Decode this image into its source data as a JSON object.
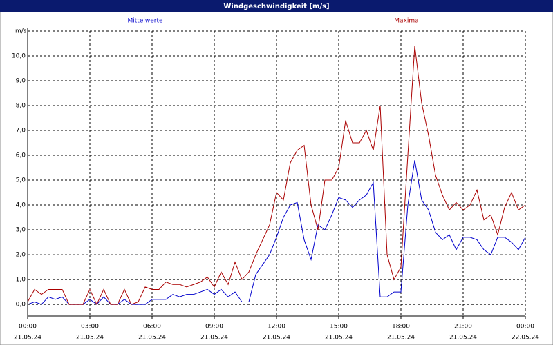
{
  "chart_data": {
    "type": "line",
    "title": "Windgeschwindigkeit [m/s]",
    "y_unit": "m/s",
    "x": [
      0,
      20,
      40,
      60,
      80,
      100,
      120,
      140,
      160,
      180,
      200,
      220,
      240,
      260,
      280,
      300,
      320,
      340,
      360,
      380,
      400,
      420,
      440,
      460,
      480,
      500,
      520,
      540,
      560,
      580,
      600,
      620,
      640,
      660,
      680,
      700,
      720,
      740,
      760,
      780,
      800,
      820,
      840,
      860,
      880,
      900,
      920,
      940,
      960,
      980,
      1000,
      1020,
      1040,
      1060,
      1080,
      1100,
      1120,
      1140,
      1160,
      1180,
      1200,
      1220,
      1240,
      1260,
      1280,
      1300,
      1320,
      1340,
      1360,
      1380,
      1400,
      1420,
      1440
    ],
    "series": [
      {
        "name": "Mittelwerte",
        "color": "#0000cc",
        "values": [
          0.0,
          0.1,
          0.0,
          0.3,
          0.2,
          0.3,
          0.0,
          0.0,
          0.0,
          0.2,
          0.0,
          0.3,
          0.0,
          0.0,
          0.2,
          0.0,
          0.0,
          0.0,
          0.2,
          0.2,
          0.2,
          0.4,
          0.3,
          0.4,
          0.4,
          0.5,
          0.6,
          0.4,
          0.6,
          0.3,
          0.5,
          0.1,
          0.1,
          1.2,
          1.6,
          2.0,
          2.7,
          3.5,
          4.0,
          4.1,
          2.6,
          1.8,
          3.2,
          3.0,
          3.6,
          4.3,
          4.2,
          3.9,
          4.2,
          4.4,
          4.9,
          0.3,
          0.3,
          0.5,
          0.5,
          4.0,
          5.8,
          4.2,
          3.8,
          2.9,
          2.6,
          2.8,
          2.2,
          2.7,
          2.7,
          2.6,
          2.2,
          2.0,
          2.7,
          2.7,
          2.5,
          2.2,
          2.7
        ]
      },
      {
        "name": "Maxima",
        "color": "#aa0000",
        "values": [
          0.1,
          0.6,
          0.4,
          0.6,
          0.6,
          0.6,
          0.0,
          0.0,
          0.0,
          0.6,
          0.0,
          0.6,
          0.0,
          0.0,
          0.6,
          0.0,
          0.1,
          0.7,
          0.6,
          0.6,
          0.9,
          0.8,
          0.8,
          0.7,
          0.8,
          0.9,
          1.1,
          0.7,
          1.3,
          0.8,
          1.7,
          1.0,
          1.3,
          2.0,
          2.6,
          3.2,
          4.5,
          4.2,
          5.7,
          6.2,
          6.4,
          4.0,
          3.0,
          5.0,
          5.0,
          5.5,
          7.4,
          6.5,
          6.5,
          7.0,
          6.2,
          8.0,
          2.0,
          1.0,
          1.5,
          6.0,
          10.4,
          8.1,
          6.8,
          5.2,
          4.4,
          3.8,
          4.1,
          3.8,
          4.0,
          4.6,
          3.4,
          3.6,
          2.8,
          3.9,
          4.5,
          3.8,
          4.0
        ]
      }
    ],
    "xlim": [
      0,
      1440
    ],
    "xticks": [
      {
        "value": 0,
        "label": "00:00",
        "date": "21.05.24"
      },
      {
        "value": 180,
        "label": "03:00",
        "date": "21.05.24"
      },
      {
        "value": 360,
        "label": "06:00",
        "date": "21.05.24"
      },
      {
        "value": 540,
        "label": "09:00",
        "date": "21.05.24"
      },
      {
        "value": 720,
        "label": "12:00",
        "date": "21.05.24"
      },
      {
        "value": 900,
        "label": "15:00",
        "date": "21.05.24"
      },
      {
        "value": 1080,
        "label": "18:00",
        "date": "21.05.24"
      },
      {
        "value": 1260,
        "label": "21:00",
        "date": "21.05.24"
      },
      {
        "value": 1440,
        "label": "00:00",
        "date": "22.05.24"
      }
    ],
    "ylim": [
      -0.47,
      11.0
    ],
    "yticks": [
      {
        "value": 0,
        "label": "0,0"
      },
      {
        "value": 1,
        "label": "1,0"
      },
      {
        "value": 2,
        "label": "2,0"
      },
      {
        "value": 3,
        "label": "3,0"
      },
      {
        "value": 4,
        "label": "4,0"
      },
      {
        "value": 5,
        "label": "5,0"
      },
      {
        "value": 6,
        "label": "6,0"
      },
      {
        "value": 7,
        "label": "7,0"
      },
      {
        "value": 8,
        "label": "8,0"
      },
      {
        "value": 9,
        "label": "9,0"
      },
      {
        "value": 10,
        "label": "10,0"
      }
    ],
    "grid": true
  }
}
